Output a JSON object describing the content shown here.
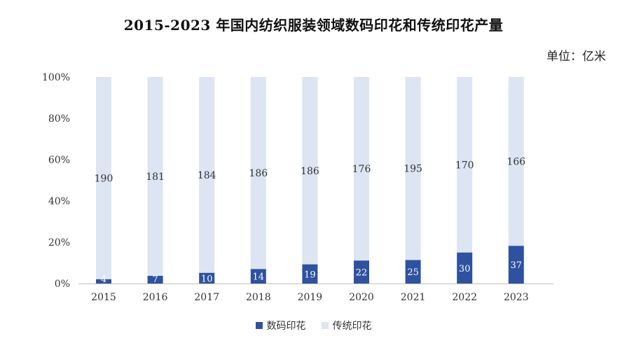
{
  "title": "2015-2023 年国内纺织服装领域数码印花和传统印花产量",
  "unit": "单位：亿米",
  "chart_data": {
    "type": "bar",
    "stacked": "percent",
    "categories": [
      "2015",
      "2016",
      "2017",
      "2018",
      "2019",
      "2020",
      "2021",
      "2022",
      "2023"
    ],
    "series": [
      {
        "name": "数码印花",
        "color": "#2E52A0",
        "values": [
          4,
          7,
          10,
          14,
          19,
          22,
          25,
          30,
          37
        ]
      },
      {
        "name": "传统印花",
        "color": "#DDE5F2",
        "values": [
          190,
          181,
          184,
          186,
          186,
          176,
          195,
          170,
          166
        ]
      }
    ],
    "yticks": [
      "0%",
      "20%",
      "40%",
      "60%",
      "80%",
      "100%"
    ],
    "ylim": [
      0,
      100
    ],
    "grid": false,
    "legend": "bottom"
  }
}
